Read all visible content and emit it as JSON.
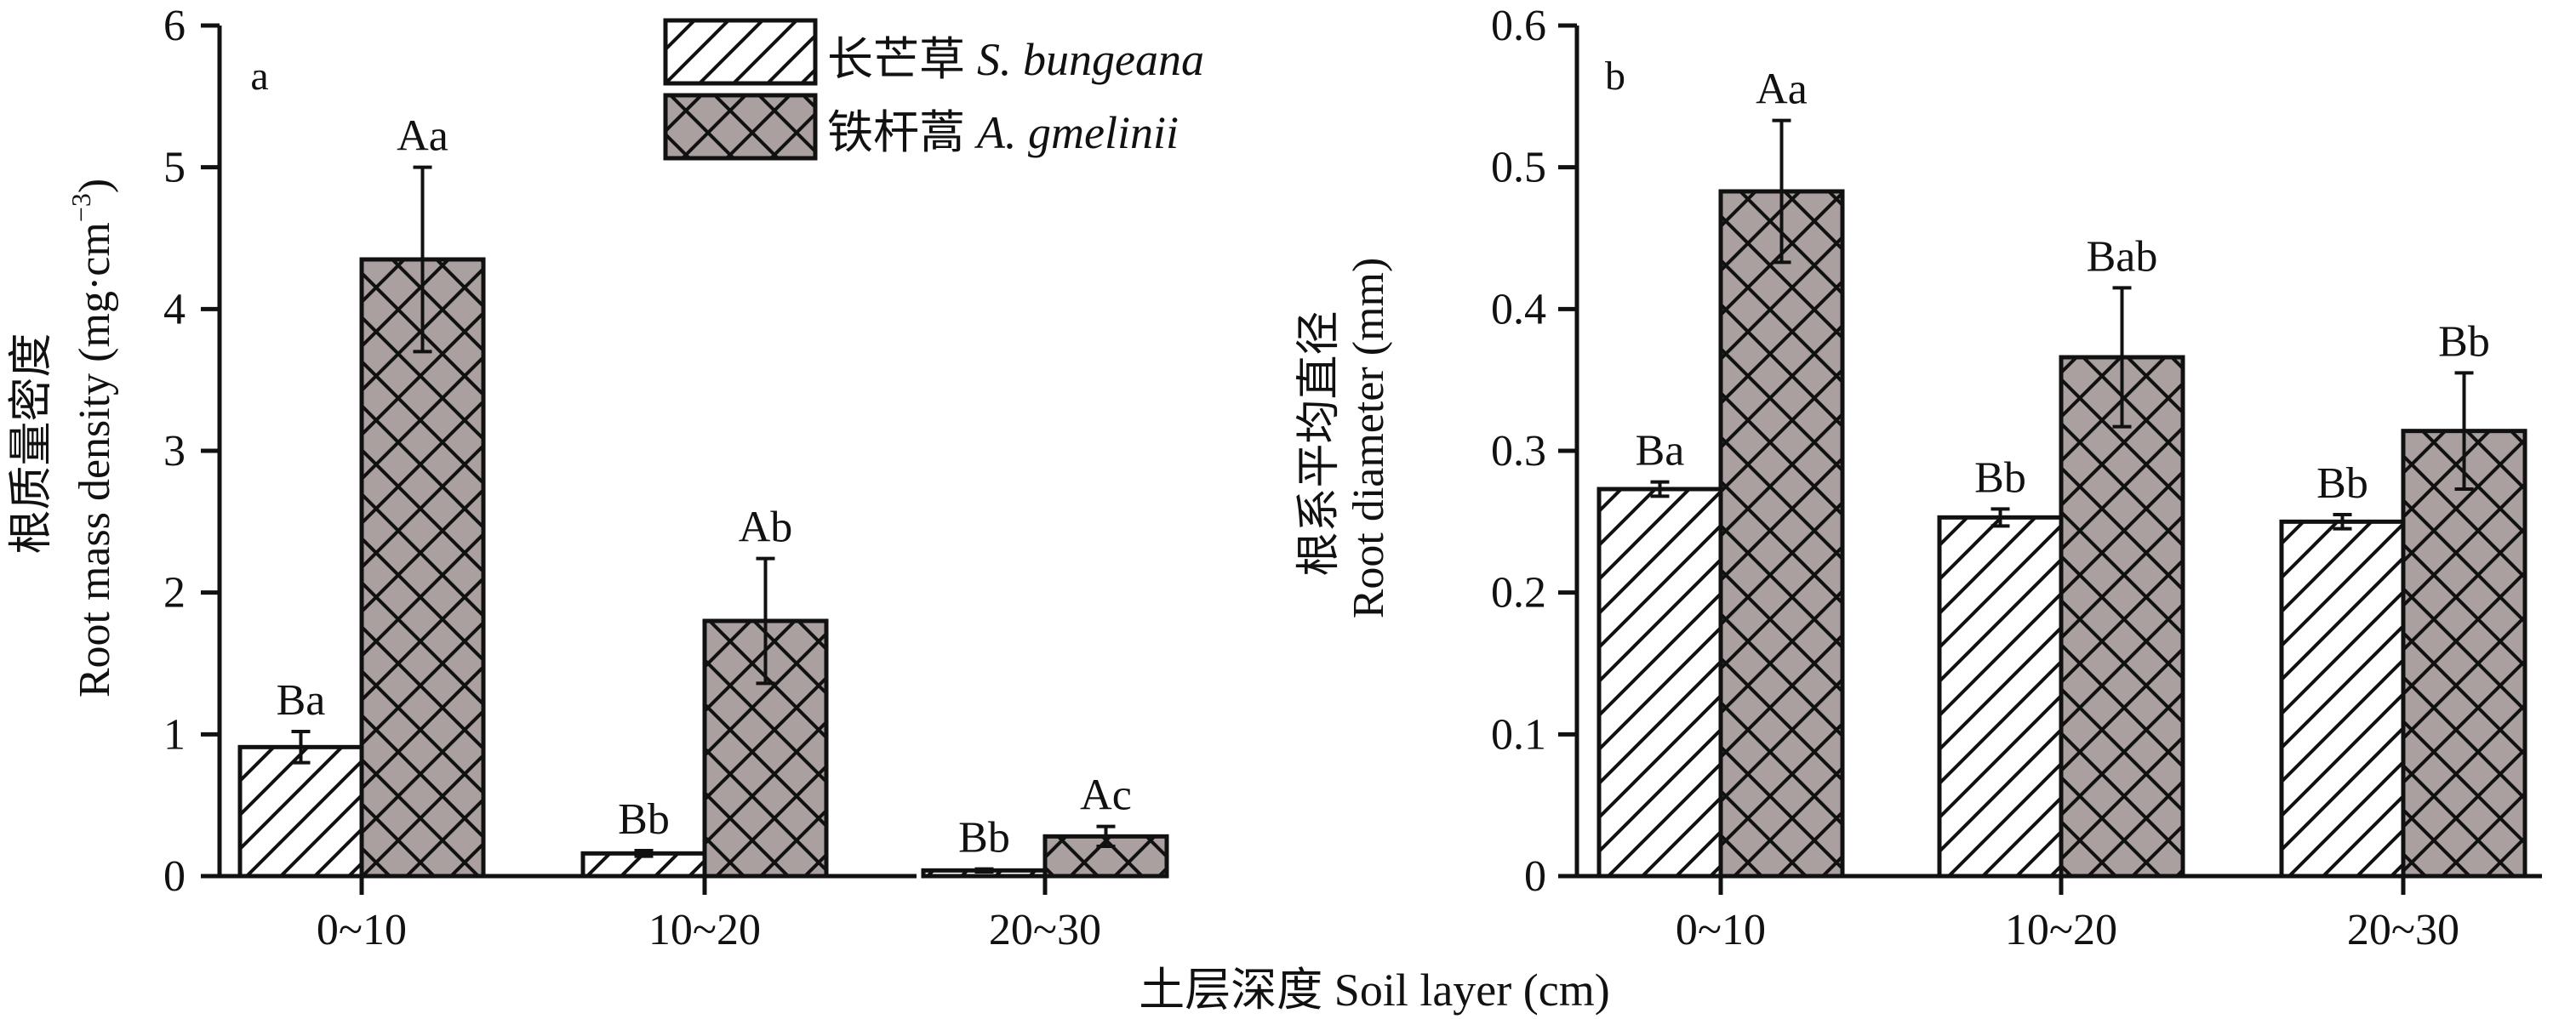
{
  "x_title": "土层深度 Soil layer (cm)",
  "legend": [
    {
      "label_cn": "长芒草",
      "label_latin": "S. bungeana",
      "pattern": "diagonal-hatch",
      "fill": "#ffffff"
    },
    {
      "label_cn": "铁杆蒿",
      "label_latin": "A. gmelinii",
      "pattern": "cross-hatch",
      "fill": "#a9a09f"
    }
  ],
  "colors": {
    "line": "#111111",
    "hatch_bg_a": "#ffffff",
    "hatch_bg_b": "#a9a09f"
  },
  "chart_data": [
    {
      "type": "bar",
      "panel": "a",
      "categories": [
        "0~10",
        "10~20",
        "20~30"
      ],
      "ylabel_cn": "根质量密度",
      "ylabel_en": "Root mass density (mg·cm",
      "ylabel_sup": "−3",
      "ylabel_close": ")",
      "ylim": [
        0,
        6
      ],
      "yticks": [
        0,
        1,
        2,
        3,
        4,
        5,
        6
      ],
      "ytick_labels": [
        "0",
        "1",
        "2",
        "3",
        "4",
        "5",
        "6"
      ],
      "series": [
        {
          "name": "长芒草 S. bungeana",
          "values": [
            0.91,
            0.16,
            0.04
          ],
          "errors": [
            0.11,
            0.02,
            0.01
          ],
          "labels": [
            "Ba",
            "Bb",
            "Bb"
          ]
        },
        {
          "name": "铁杆蒿 A. gmelinii",
          "values": [
            4.35,
            1.8,
            0.28
          ],
          "errors": [
            0.65,
            0.44,
            0.07
          ],
          "labels": [
            "Aa",
            "Ab",
            "Ac"
          ]
        }
      ]
    },
    {
      "type": "bar",
      "panel": "b",
      "categories": [
        "0~10",
        "10~20",
        "20~30"
      ],
      "ylabel_cn": "根系平均直径",
      "ylabel_en": "Root diameter (mm)",
      "ylabel_sup": "",
      "ylabel_close": "",
      "ylim": [
        0,
        0.6
      ],
      "yticks": [
        0,
        0.1,
        0.2,
        0.3,
        0.4,
        0.5,
        0.6
      ],
      "ytick_labels": [
        "0",
        "0.1",
        "0.2",
        "0.3",
        "0.4",
        "0.5",
        "0.6"
      ],
      "series": [
        {
          "name": "长芒草 S. bungeana",
          "values": [
            0.273,
            0.253,
            0.25
          ],
          "errors": [
            0.005,
            0.006,
            0.005
          ],
          "labels": [
            "Ba",
            "Bb",
            "Bb"
          ]
        },
        {
          "name": "铁杆蒿 A. gmelinii",
          "values": [
            0.483,
            0.366,
            0.314
          ],
          "errors": [
            0.05,
            0.049,
            0.041
          ],
          "labels": [
            "Aa",
            "Bab",
            "Bb"
          ]
        }
      ]
    }
  ]
}
